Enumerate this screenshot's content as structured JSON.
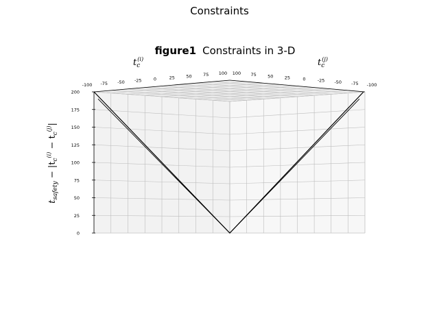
{
  "window": {
    "title": "Constraints"
  },
  "chart_data": {
    "type": "3d-line",
    "title_bold": "figure1",
    "title": "Constraints in 3-D",
    "xlabel": "t_c^{(i)}",
    "ylabel": "t_c^{(j)}",
    "zlabel": "t_safety − |t_c^{(i)} − t_c^{(j)}|",
    "x_ticks": [
      -100,
      -75,
      -50,
      -25,
      0,
      25,
      50,
      75,
      100
    ],
    "y_ticks": [
      100,
      75,
      50,
      25,
      0,
      -25,
      -50,
      -75,
      -100
    ],
    "z_ticks": [
      0,
      25,
      50,
      75,
      100,
      125,
      150,
      175,
      200
    ],
    "xlim": [
      -100,
      100
    ],
    "ylim": [
      -100,
      100
    ],
    "zlim": [
      0,
      200
    ],
    "grid": true,
    "series": [
      {
        "x": [
          -100,
          0,
          100
        ],
        "y": [
          -100,
          0,
          100
        ],
        "z": [
          200,
          0,
          200
        ]
      },
      {
        "x": [
          -100,
          0,
          100
        ],
        "y": [
          -100,
          0,
          100
        ],
        "z": [
          190,
          0,
          190
        ]
      }
    ]
  }
}
